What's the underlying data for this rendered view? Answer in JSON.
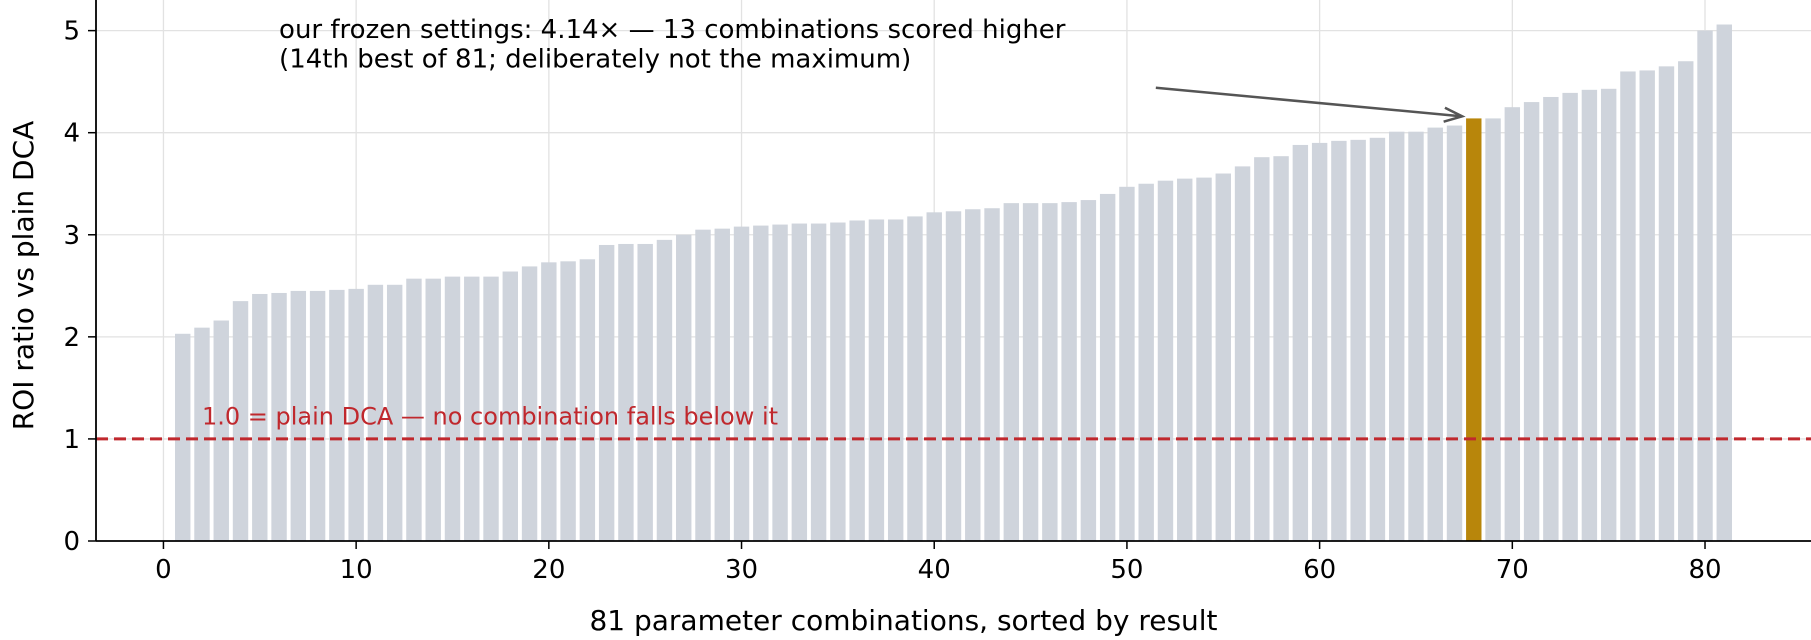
{
  "chart_data": {
    "type": "bar",
    "title": "",
    "xlabel": "81 parameter combinations, sorted by result",
    "ylabel": "ROI ratio vs plain DCA",
    "x": [
      1,
      2,
      3,
      4,
      5,
      6,
      7,
      8,
      9,
      10,
      11,
      12,
      13,
      14,
      15,
      16,
      17,
      18,
      19,
      20,
      21,
      22,
      23,
      24,
      25,
      26,
      27,
      28,
      29,
      30,
      31,
      32,
      33,
      34,
      35,
      36,
      37,
      38,
      39,
      40,
      41,
      42,
      43,
      44,
      45,
      46,
      47,
      48,
      49,
      50,
      51,
      52,
      53,
      54,
      55,
      56,
      57,
      58,
      59,
      60,
      61,
      62,
      63,
      64,
      65,
      66,
      67,
      68,
      69,
      70,
      71,
      72,
      73,
      74,
      75,
      76,
      77,
      78,
      79,
      80,
      81
    ],
    "values": [
      2.03,
      2.09,
      2.16,
      2.35,
      2.42,
      2.43,
      2.45,
      2.45,
      2.46,
      2.47,
      2.51,
      2.51,
      2.57,
      2.57,
      2.59,
      2.59,
      2.59,
      2.64,
      2.69,
      2.73,
      2.74,
      2.76,
      2.9,
      2.91,
      2.91,
      2.95,
      3.0,
      3.05,
      3.06,
      3.08,
      3.09,
      3.1,
      3.11,
      3.11,
      3.12,
      3.14,
      3.15,
      3.15,
      3.18,
      3.22,
      3.23,
      3.25,
      3.26,
      3.31,
      3.31,
      3.31,
      3.32,
      3.34,
      3.4,
      3.47,
      3.5,
      3.53,
      3.55,
      3.56,
      3.6,
      3.67,
      3.76,
      3.77,
      3.88,
      3.9,
      3.92,
      3.93,
      3.95,
      4.01,
      4.01,
      4.05,
      4.07,
      4.14,
      4.14,
      4.25,
      4.3,
      4.35,
      4.39,
      4.42,
      4.43,
      4.6,
      4.61,
      4.65,
      4.7,
      5.0,
      5.06
    ],
    "highlight_x": 68,
    "xlim": [
      -3.5,
      85.5
    ],
    "ylim": [
      0,
      5.3
    ],
    "xticks": [
      "0",
      "10",
      "20",
      "30",
      "40",
      "50",
      "60",
      "70",
      "80"
    ],
    "yticks": [
      "0",
      "1",
      "2",
      "3",
      "4",
      "5"
    ],
    "grid": true,
    "reference_line": {
      "y": 1.0,
      "label": "1.0 = plain DCA — no combination falls below it"
    },
    "annotation": {
      "line1": "our frozen settings: 4.14× — 13 combinations scored higher",
      "line2": "(14th best of 81; deliberately not the maximum)"
    },
    "colors": {
      "bar": "#cfd4dc",
      "highlight": "#b8860b",
      "reference": "#c0282d",
      "arrow": "#555555",
      "grid": "#e2e2e2"
    }
  }
}
